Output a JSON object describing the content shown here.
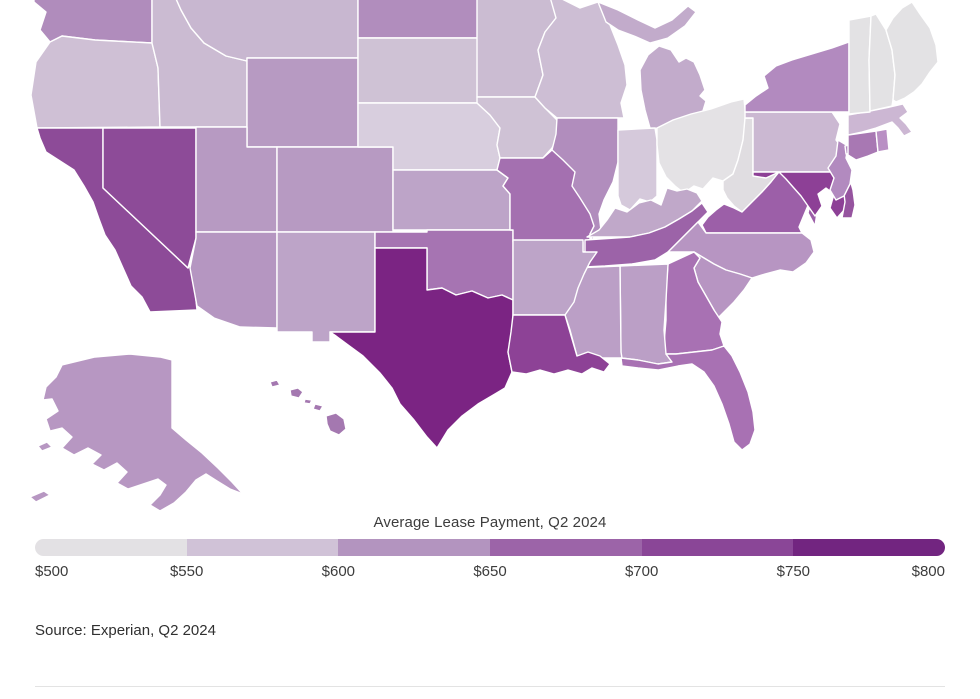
{
  "page": {
    "background": "#ffffff"
  },
  "chart_data": {
    "type": "choropleth",
    "region": "United States (states, Albers composite with AK and HI insets)",
    "title": "Average Lease Payment, Q2 2024",
    "source": "Source: Experian, Q2 2024",
    "unit": "USD per month",
    "legend": {
      "position": "bottom",
      "ticks": [
        "$500",
        "$550",
        "$600",
        "$650",
        "$700",
        "$750",
        "$800"
      ],
      "range": [
        500,
        800
      ],
      "bin_colors": [
        "#e3e1e4",
        "#d0c2d7",
        "#b394bf",
        "#9c64a8",
        "#8a4697",
        "#722580"
      ]
    },
    "states": [
      {
        "id": "AL",
        "name": "Alabama",
        "value": 610,
        "fill": "#bb9fc6"
      },
      {
        "id": "AK",
        "name": "Alaska",
        "value": 615,
        "fill": "#b797c2"
      },
      {
        "id": "AZ",
        "name": "Arizona",
        "value": 618,
        "fill": "#b596c1"
      },
      {
        "id": "AR",
        "name": "Arkansas",
        "value": 606,
        "fill": "#bda4c8"
      },
      {
        "id": "CA",
        "name": "California",
        "value": 720,
        "fill": "#8d4b98"
      },
      {
        "id": "CO",
        "name": "Colorado",
        "value": 616,
        "fill": "#b79ac2"
      },
      {
        "id": "CT",
        "name": "Connecticut",
        "value": 659,
        "fill": "#a878b3"
      },
      {
        "id": "DE",
        "name": "Delaware",
        "value": 703,
        "fill": "#96549f"
      },
      {
        "id": "FL",
        "name": "Florida",
        "value": 662,
        "fill": "#a871b3"
      },
      {
        "id": "GA",
        "name": "Georgia",
        "value": 661,
        "fill": "#a871b3"
      },
      {
        "id": "HI",
        "name": "Hawaii",
        "value": 657,
        "fill": "#a478b0"
      },
      {
        "id": "ID",
        "name": "Idaho",
        "value": 582,
        "fill": "#cbbbd2"
      },
      {
        "id": "IL",
        "name": "Illinois",
        "value": 638,
        "fill": "#b18dbd"
      },
      {
        "id": "IN",
        "name": "Indiana",
        "value": 566,
        "fill": "#d5c9db"
      },
      {
        "id": "IA",
        "name": "Iowa",
        "value": 577,
        "fill": "#cfc2d5"
      },
      {
        "id": "KS",
        "name": "Kansas",
        "value": 607,
        "fill": "#bda4c8"
      },
      {
        "id": "KY",
        "name": "Kentucky",
        "value": 601,
        "fill": "#c0a8c9"
      },
      {
        "id": "LA",
        "name": "Louisiana",
        "value": 724,
        "fill": "#8d4296"
      },
      {
        "id": "ME",
        "name": "Maine",
        "value": 538,
        "fill": "#e3e2e4"
      },
      {
        "id": "MD",
        "name": "Maryland",
        "value": 726,
        "fill": "#8d4096"
      },
      {
        "id": "MA",
        "name": "Massachusetts",
        "value": 589,
        "fill": "#ccb7d3"
      },
      {
        "id": "MI",
        "name": "Michigan",
        "value": 597,
        "fill": "#c2abcb"
      },
      {
        "id": "MN",
        "name": "Minnesota",
        "value": 581,
        "fill": "#cbbcd2"
      },
      {
        "id": "MS",
        "name": "Mississippi",
        "value": 609,
        "fill": "#bb9fc6"
      },
      {
        "id": "MO",
        "name": "Missouri",
        "value": 668,
        "fill": "#a470b0"
      },
      {
        "id": "MT",
        "name": "Montana",
        "value": 586,
        "fill": "#c8b7d0"
      },
      {
        "id": "NE",
        "name": "Nebraska",
        "value": 561,
        "fill": "#d8cede"
      },
      {
        "id": "NV",
        "name": "Nevada",
        "value": 718,
        "fill": "#8d4b98"
      },
      {
        "id": "NH",
        "name": "New Hampshire",
        "value": 536,
        "fill": "#e3e2e4"
      },
      {
        "id": "NJ",
        "name": "New Jersey",
        "value": 640,
        "fill": "#b28abf"
      },
      {
        "id": "NM",
        "name": "New Mexico",
        "value": 608,
        "fill": "#bda4c8"
      },
      {
        "id": "NY",
        "name": "New York",
        "value": 641,
        "fill": "#b28abf"
      },
      {
        "id": "NC",
        "name": "North Carolina",
        "value": 622,
        "fill": "#b795c2"
      },
      {
        "id": "ND",
        "name": "North Dakota",
        "value": 637,
        "fill": "#b18dbd"
      },
      {
        "id": "OH",
        "name": "Ohio",
        "value": 528,
        "fill": "#e4e2e5"
      },
      {
        "id": "OK",
        "name": "Oklahoma",
        "value": 664,
        "fill": "#a674b2"
      },
      {
        "id": "OR",
        "name": "Oregon",
        "value": 578,
        "fill": "#cfc0d5"
      },
      {
        "id": "PA",
        "name": "Pennsylvania",
        "value": 588,
        "fill": "#cbb8d2"
      },
      {
        "id": "RI",
        "name": "Rhode Island",
        "value": 633,
        "fill": "#b98fc4"
      },
      {
        "id": "SC",
        "name": "South Carolina",
        "value": 623,
        "fill": "#b795c2"
      },
      {
        "id": "SD",
        "name": "South Dakota",
        "value": 576,
        "fill": "#cfc2d5"
      },
      {
        "id": "TN",
        "name": "Tennessee",
        "value": 689,
        "fill": "#9c63a8"
      },
      {
        "id": "TX",
        "name": "Texas",
        "value": 784,
        "fill": "#7b2483"
      },
      {
        "id": "UT",
        "name": "Utah",
        "value": 617,
        "fill": "#b79ac2"
      },
      {
        "id": "VT",
        "name": "Vermont",
        "value": 537,
        "fill": "#e3e2e4"
      },
      {
        "id": "VA",
        "name": "Virginia",
        "value": 692,
        "fill": "#9c5fa8"
      },
      {
        "id": "WA",
        "name": "Washington",
        "value": 644,
        "fill": "#b08cbc"
      },
      {
        "id": "WV",
        "name": "West Virginia",
        "value": 544,
        "fill": "#e0dde1"
      },
      {
        "id": "WI",
        "name": "Wisconsin",
        "value": 580,
        "fill": "#cdbed4"
      },
      {
        "id": "WY",
        "name": "Wyoming",
        "value": 619,
        "fill": "#b79ac2"
      }
    ]
  },
  "footer": {
    "divider_color": "#e3e3e3"
  }
}
